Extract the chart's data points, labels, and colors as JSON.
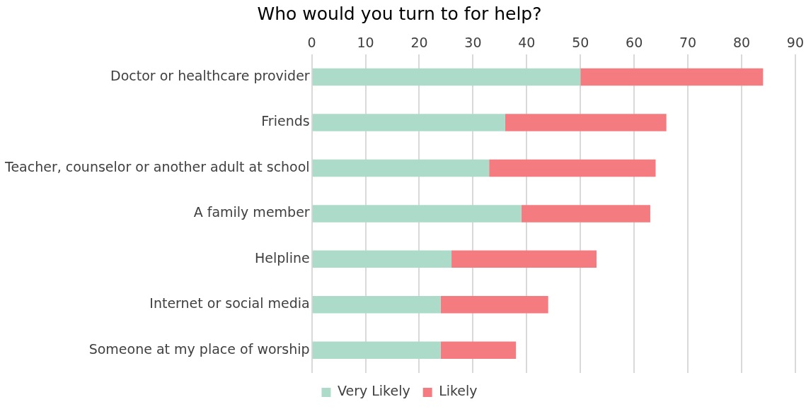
{
  "chart_data": {
    "type": "bar",
    "orientation": "horizontal",
    "stacked": true,
    "title": "Who would you turn to for help?",
    "categories": [
      "Doctor or healthcare provider",
      "Friends",
      "Teacher, counselor or another adult at school",
      "A family member",
      "Helpline",
      "Internet or social media",
      "Someone at my place of worship"
    ],
    "series": [
      {
        "name": "Very Likely",
        "color": "#addbca",
        "values": [
          50,
          36,
          33,
          39,
          26,
          24,
          24
        ]
      },
      {
        "name": "Likely",
        "color": "#f47c80",
        "values": [
          34,
          30,
          31,
          24,
          27,
          20,
          14
        ]
      }
    ],
    "xlim": [
      0,
      90
    ],
    "xticks": [
      0,
      10,
      20,
      30,
      40,
      50,
      60,
      70,
      80,
      90
    ],
    "grid": "x",
    "legend": "bottom"
  }
}
